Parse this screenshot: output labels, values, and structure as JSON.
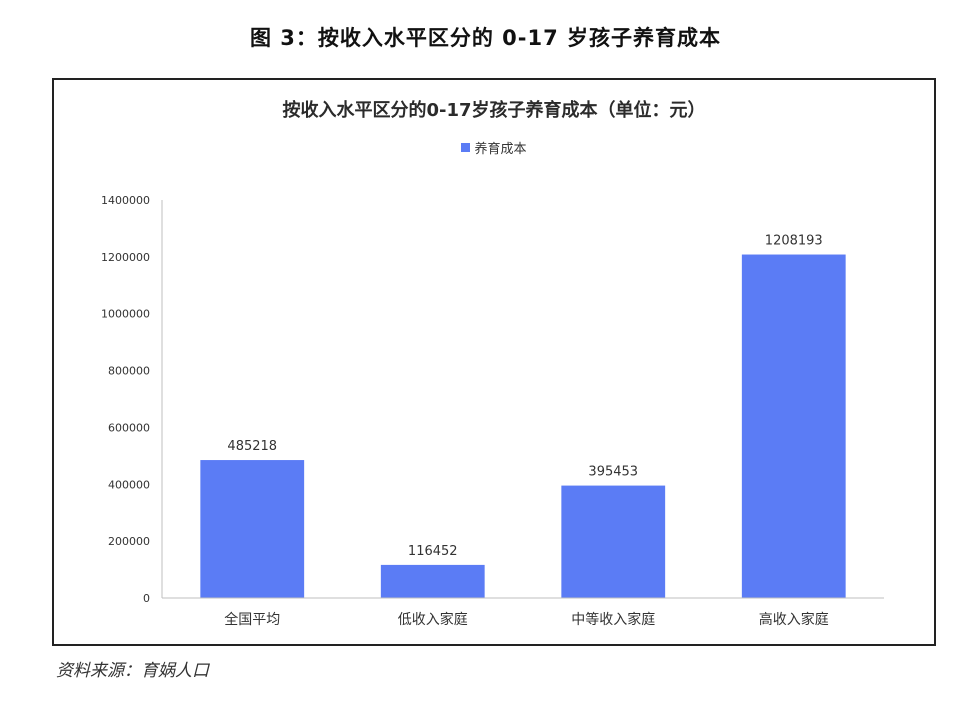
{
  "figure": {
    "title": "图 3：按收入水平区分的 0-17 岁孩子养育成本",
    "source": "资料来源：育娲人口"
  },
  "colors": {
    "bar": "#5b7cf5",
    "axis": "#bfbfbf",
    "text": "#333333"
  },
  "chart_data": {
    "type": "bar",
    "title": "按收入水平区分的0-17岁孩子养育成本（单位：元）",
    "categories": [
      "全国平均",
      "低收入家庭",
      "中等收入家庭",
      "高收入家庭"
    ],
    "series": [
      {
        "name": "养育成本",
        "values": [
          485218,
          116452,
          395453,
          1208193
        ]
      }
    ],
    "data_labels": [
      "485218",
      "116452",
      "395453",
      "1208193"
    ],
    "yticks": [
      "0",
      "200000",
      "400000",
      "600000",
      "800000",
      "1000000",
      "1200000",
      "1400000"
    ],
    "ylim": [
      0,
      1400000
    ],
    "grid": false,
    "legend_position": "top-center"
  }
}
